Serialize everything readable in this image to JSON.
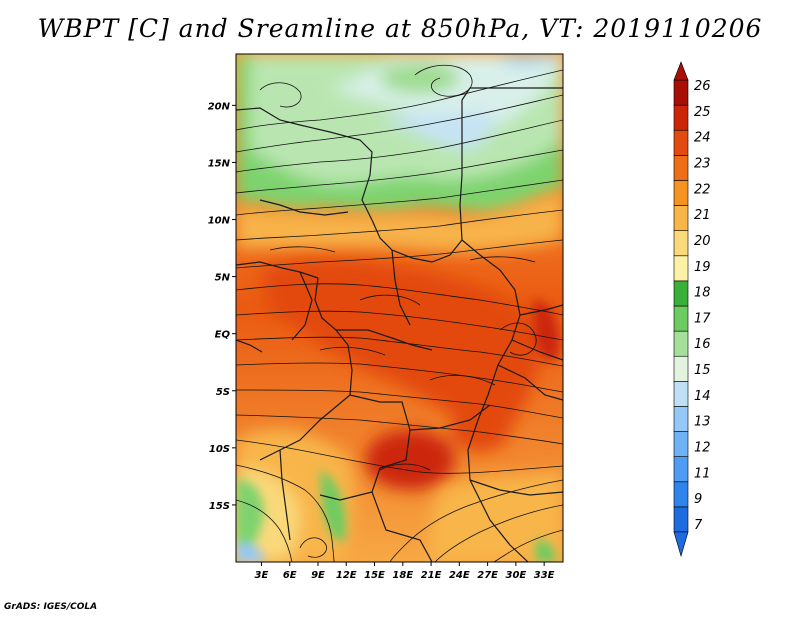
{
  "title": "WBPT [C] and Sreamline at 850hPa, VT: 2019110206",
  "credit": "GrADS: IGES/COLA",
  "map": {
    "lat_labels": [
      {
        "lat": 20,
        "label": "20N"
      },
      {
        "lat": 15,
        "label": "15N"
      },
      {
        "lat": 10,
        "label": "10N"
      },
      {
        "lat": 5,
        "label": "5N"
      },
      {
        "lat": 0,
        "label": "EQ"
      },
      {
        "lat": -5,
        "label": "5S"
      },
      {
        "lat": -10,
        "label": "10S"
      },
      {
        "lat": -15,
        "label": "15S"
      }
    ],
    "lon_labels": [
      {
        "lon": 3,
        "label": "3E"
      },
      {
        "lon": 6,
        "label": "6E"
      },
      {
        "lon": 9,
        "label": "9E"
      },
      {
        "lon": 12,
        "label": "12E"
      },
      {
        "lon": 15,
        "label": "15E"
      },
      {
        "lon": 18,
        "label": "18E"
      },
      {
        "lon": 21,
        "label": "21E"
      },
      {
        "lon": 24,
        "label": "24E"
      },
      {
        "lon": 27,
        "label": "27E"
      },
      {
        "lon": 30,
        "label": "30E"
      },
      {
        "lon": 33,
        "label": "33E"
      }
    ],
    "lon_range": [
      0.3,
      35
    ],
    "lat_range": [
      -20,
      24.5
    ]
  },
  "colorbar": {
    "labels": [
      "7",
      "9",
      "11",
      "12",
      "13",
      "14",
      "15",
      "16",
      "17",
      "18",
      "19",
      "20",
      "21",
      "22",
      "23",
      "24",
      "25",
      "26"
    ],
    "colors": [
      "#1e6be0",
      "#2f84ec",
      "#4e9cf4",
      "#6fb2f6",
      "#95c8f6",
      "#bfdff4",
      "#e2f4e0",
      "#a4e09a",
      "#6ccc62",
      "#3aaf3a",
      "#fbf2a8",
      "#fad97a",
      "#f8b548",
      "#f59322",
      "#ee6e18",
      "#e34a10",
      "#cc2508",
      "#a81006"
    ]
  }
}
